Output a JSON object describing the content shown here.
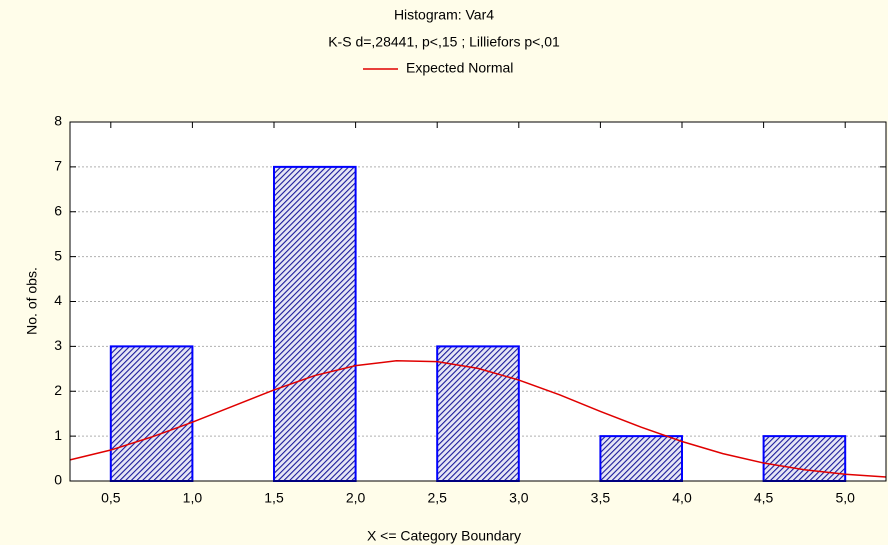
{
  "chart_data": {
    "type": "histogram",
    "title": "Histogram: Var4",
    "subtitle": "K-S d=,28441, p<,15 ; Lilliefors p<,01",
    "xlabel": "X <= Category Boundary",
    "ylabel": "No. of obs.",
    "bins": [
      0.5,
      1.0,
      1.5,
      2.0,
      2.5,
      3.0,
      3.5,
      4.0,
      4.5,
      5.0
    ],
    "values": [
      3,
      0,
      7,
      0,
      3,
      0,
      1,
      0,
      1
    ],
    "color": "#1a1a9a",
    "edgecolor": "#0000ff",
    "xlim": [
      0.25,
      5.25
    ],
    "xticks": [
      {
        "value": 0.5,
        "label": "0,5"
      },
      {
        "value": 1.0,
        "label": "1,0"
      },
      {
        "value": 1.5,
        "label": "1,5"
      },
      {
        "value": 2.0,
        "label": "2,0"
      },
      {
        "value": 2.5,
        "label": "2,5"
      },
      {
        "value": 3.0,
        "label": "3,0"
      },
      {
        "value": 3.5,
        "label": "3,5"
      },
      {
        "value": 4.0,
        "label": "4,0"
      },
      {
        "value": 4.5,
        "label": "4,5"
      },
      {
        "value": 5.0,
        "label": "5,0"
      }
    ],
    "ylim": [
      0,
      8
    ],
    "yticks": [
      0,
      1,
      2,
      3,
      4,
      5,
      6,
      7,
      8
    ],
    "grid": true,
    "legend": "top",
    "series": [
      {
        "name": "Expected Normal",
        "color": "#e00000",
        "type": "line",
        "x": [
          0.25,
          0.5,
          0.75,
          1.0,
          1.25,
          1.5,
          1.75,
          2.0,
          2.25,
          2.5,
          2.75,
          3.0,
          3.25,
          3.5,
          3.75,
          4.0,
          4.25,
          4.5,
          4.75,
          5.0,
          5.25
        ],
        "values": [
          0.47,
          0.69,
          0.98,
          1.31,
          1.67,
          2.03,
          2.35,
          2.57,
          2.68,
          2.66,
          2.51,
          2.25,
          1.92,
          1.55,
          1.2,
          0.88,
          0.61,
          0.4,
          0.25,
          0.15,
          0.09
        ]
      }
    ]
  }
}
